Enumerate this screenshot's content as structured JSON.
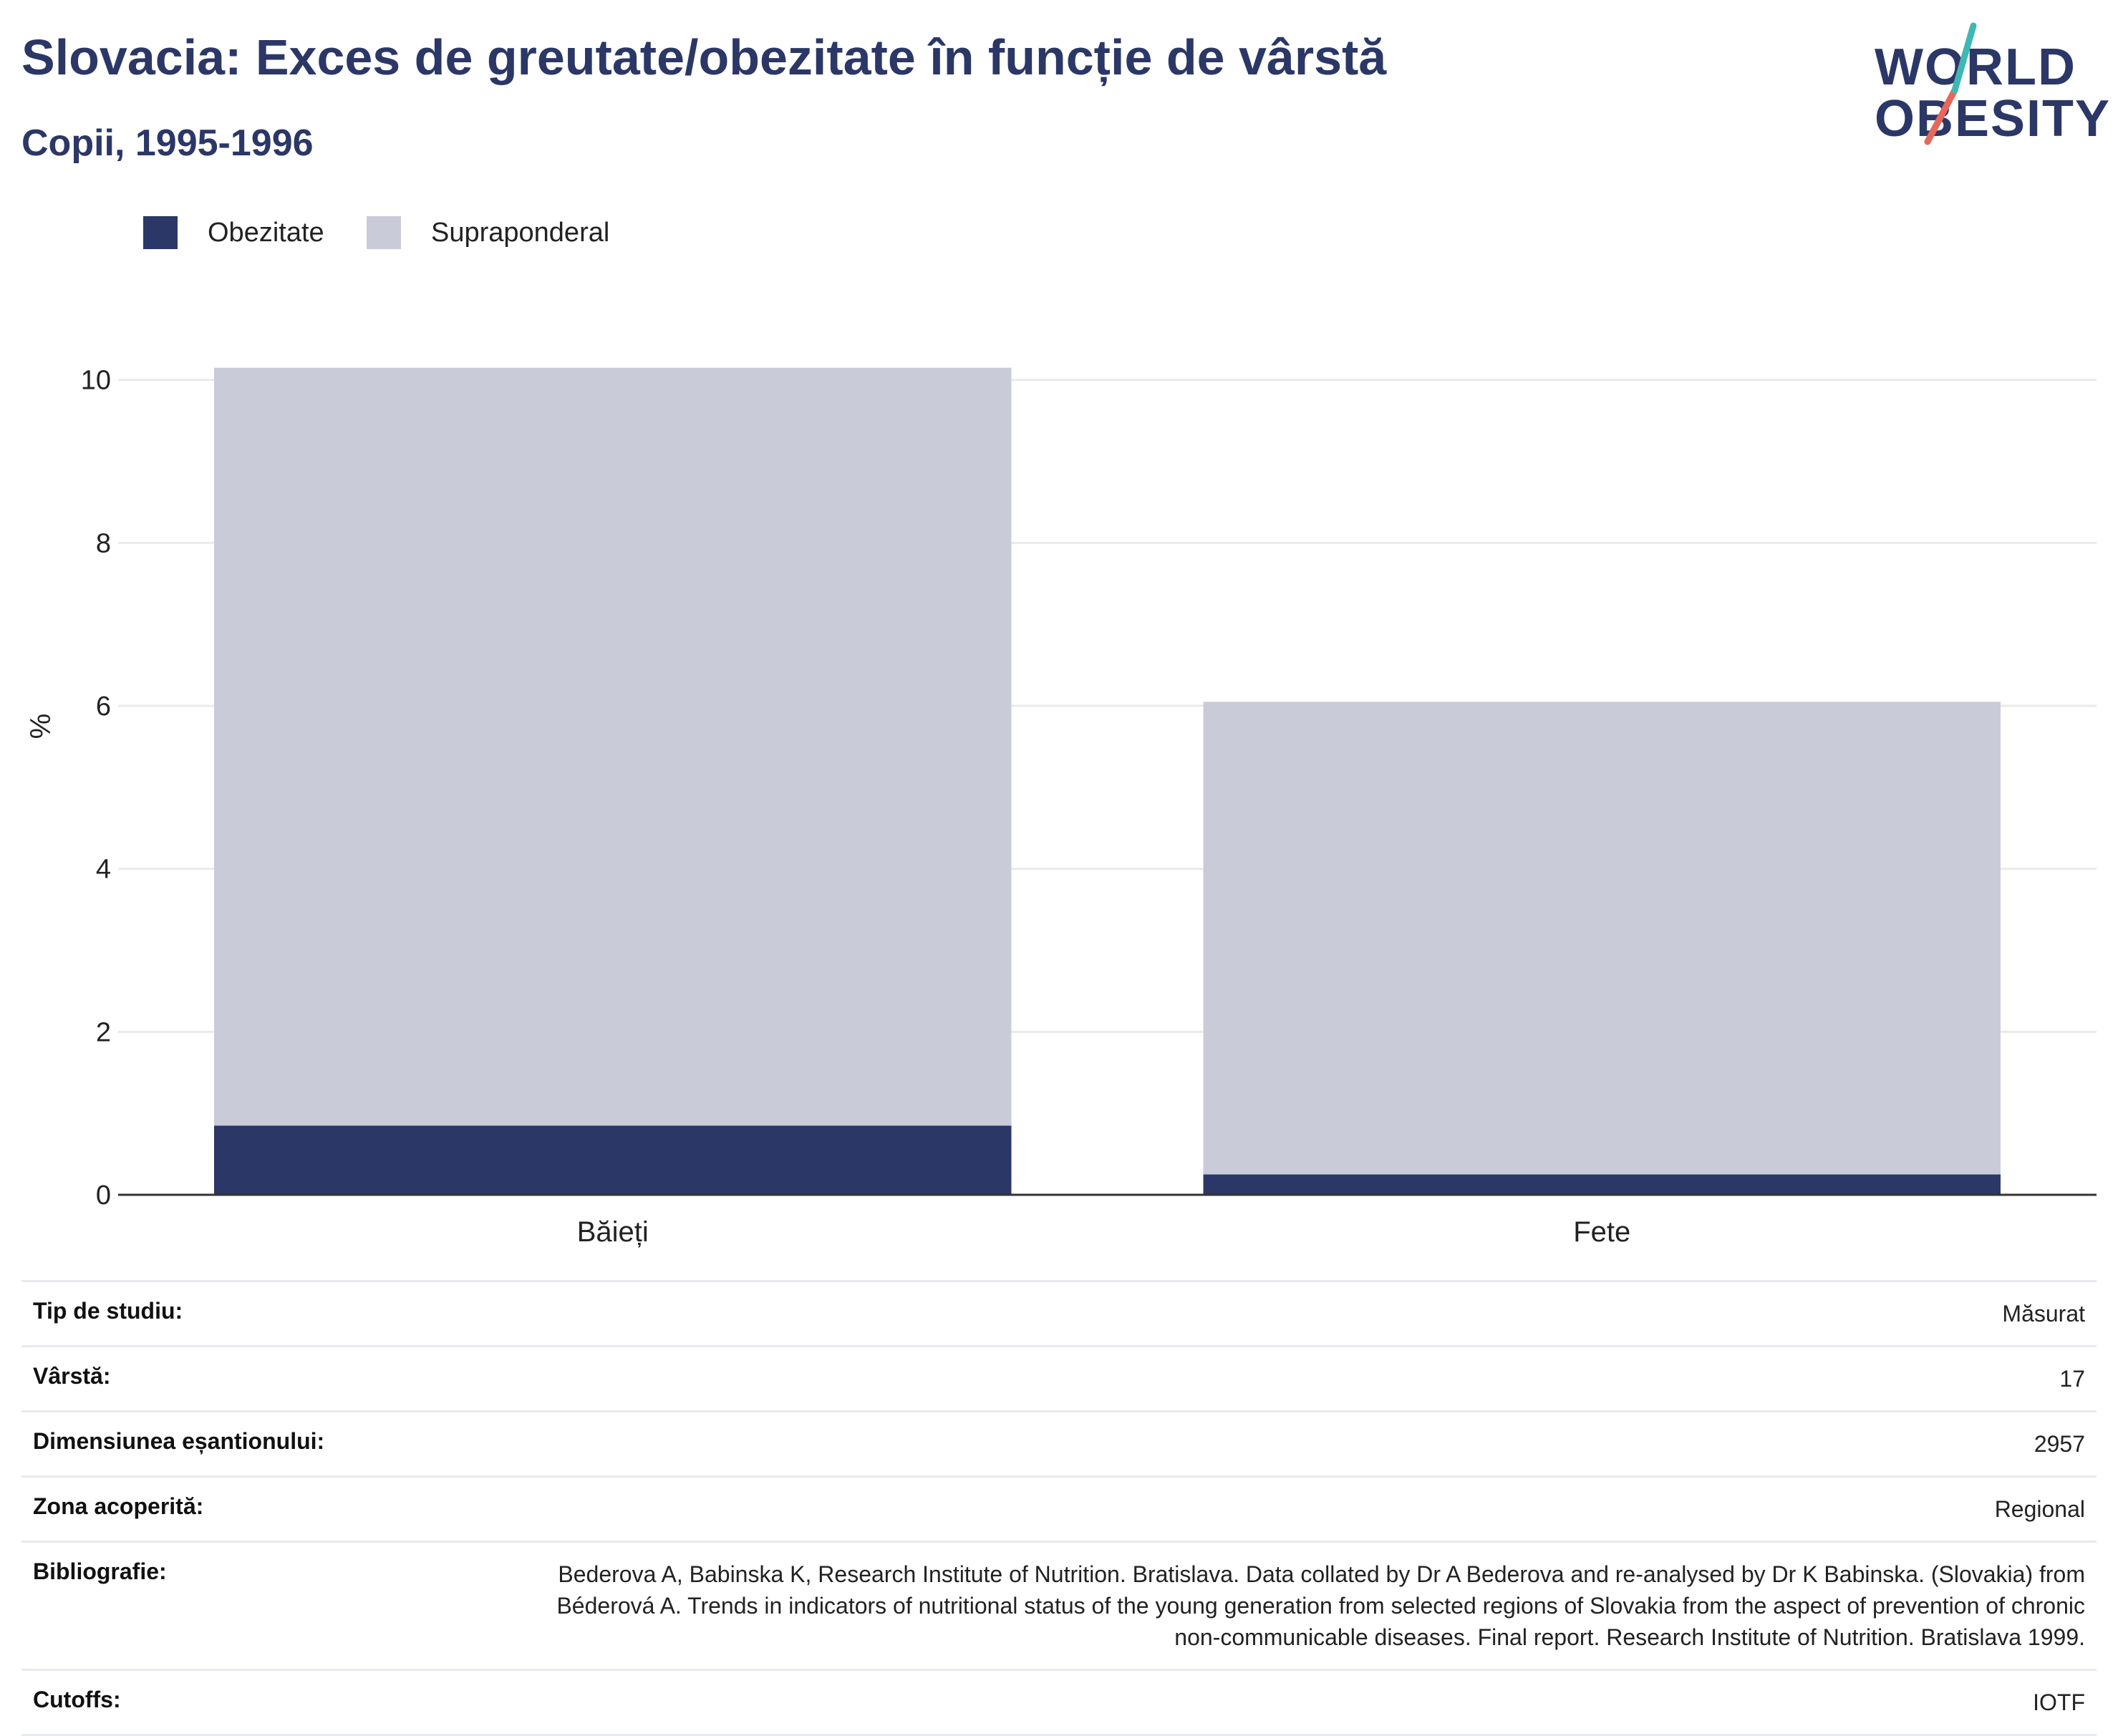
{
  "header": {
    "title": "Slovacia: Exces de greutate/obezitate în funcție de vârstă",
    "subtitle": "Copii, 1995-1996"
  },
  "logo": {
    "line1": "WORLD",
    "line2": "OBESITY"
  },
  "colors": {
    "obezitate": "#2b3766",
    "supraponderal": "#c9ccd8",
    "grid": "#e9eaee",
    "axis": "#333333"
  },
  "chart_data": {
    "type": "bar",
    "stacked": true,
    "categories": [
      "Băieți",
      "Fete"
    ],
    "series": [
      {
        "name": "Obezitate",
        "values": [
          0.85,
          0.25
        ]
      },
      {
        "name": "Supraponderal",
        "values": [
          9.3,
          5.8
        ]
      }
    ],
    "ylabel": "%",
    "ylim": [
      0,
      11.5
    ],
    "yticks": [
      0,
      2,
      4,
      6,
      8,
      10
    ],
    "grid": true,
    "legend_position": "top-left"
  },
  "info": [
    {
      "label": "Tip de studiu:",
      "value": "Măsurat"
    },
    {
      "label": "Vârstă:",
      "value": "17"
    },
    {
      "label": "Dimensiunea eșantionului:",
      "value": "2957"
    },
    {
      "label": "Zona acoperită:",
      "value": "Regional"
    },
    {
      "label": "Bibliografie:",
      "value": "Bederova A, Babinska K, Research Institute of Nutrition. Bratislava. Data collated by Dr A Bederova and re-analysed by Dr K Babinska. (Slovakia) from Béderová A. Trends in indicators of nutritional status of the young generation from selected regions of Slovakia from the aspect of prevention of chronic non-communicable diseases. Final report. Research Institute of Nutrition. Bratislava 1999."
    },
    {
      "label": "Cutoffs:",
      "value": "IOTF"
    }
  ]
}
